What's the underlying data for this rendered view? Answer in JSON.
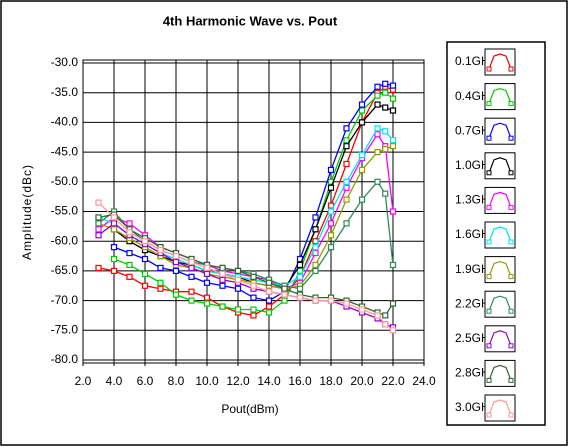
{
  "chart_data": {
    "type": "line",
    "title": "4th Harmonic Wave vs. Pout",
    "x_label": "Pout(dBm)",
    "y_label": "Amplitude(dBc)",
    "x": [
      3,
      4,
      5,
      6,
      7,
      8,
      9,
      10,
      11,
      12,
      13,
      14,
      15,
      16,
      17,
      18,
      19,
      20,
      21,
      21.5,
      22
    ],
    "xlim": [
      2,
      24
    ],
    "ylim": [
      -80,
      -30
    ],
    "xticks": [
      {
        "value": 2,
        "label": "2.0"
      },
      {
        "value": 4,
        "label": "4.0"
      },
      {
        "value": 6,
        "label": "6.0"
      },
      {
        "value": 8,
        "label": "8.0"
      },
      {
        "value": 10,
        "label": "10.0"
      },
      {
        "value": 12,
        "label": "12.0"
      },
      {
        "value": 14,
        "label": "14.0"
      },
      {
        "value": 16,
        "label": "16.0"
      },
      {
        "value": 18,
        "label": "18.0"
      },
      {
        "value": 20,
        "label": "20.0"
      },
      {
        "value": 22,
        "label": "22.0"
      },
      {
        "value": 24,
        "label": "24.0"
      }
    ],
    "yticks": [
      {
        "value": -30,
        "label": "-30.0"
      },
      {
        "value": -35,
        "label": "-35.0"
      },
      {
        "value": -40,
        "label": "-40.0"
      },
      {
        "value": -45,
        "label": "-45.0"
      },
      {
        "value": -50,
        "label": "-50.0"
      },
      {
        "value": -55,
        "label": "-55.0"
      },
      {
        "value": -60,
        "label": "-60.0"
      },
      {
        "value": -65,
        "label": "-65.0"
      },
      {
        "value": -70,
        "label": "-70.0"
      },
      {
        "value": -75,
        "label": "-75.0"
      },
      {
        "value": -80,
        "label": "-80.0"
      }
    ],
    "grid": true,
    "legend": "right",
    "series": [
      {
        "name": "0.1GHz",
        "color": "#ff0000",
        "values": [
          -64.5,
          -65,
          -66,
          -67.5,
          -68,
          -68.5,
          -68.5,
          -69.5,
          -71,
          -72,
          -72.5,
          -71,
          -69,
          -66,
          -60,
          -54,
          -47,
          -40,
          -35,
          -34,
          -34.5
        ]
      },
      {
        "name": "0.4GHz",
        "color": "#00cc00",
        "values": [
          null,
          -63,
          -64,
          -65.5,
          -67,
          -69,
          -70,
          -70.5,
          -71,
          -71.5,
          -71.5,
          -72,
          -70,
          -65,
          -58,
          -50,
          -43,
          -38,
          -35.5,
          -35,
          -36
        ]
      },
      {
        "name": "0.7GHz",
        "color": "#0000ff",
        "values": [
          null,
          -61,
          -62,
          -63,
          -64.5,
          -65,
          -66,
          -67,
          -67.5,
          -68,
          -69.5,
          -70,
          -68.5,
          -63,
          -56,
          -48,
          -41,
          -37,
          -34,
          -33.5,
          -33.8
        ]
      },
      {
        "name": "1.0GHz",
        "color": "#000000",
        "values": [
          null,
          -58,
          -60,
          -61.5,
          -62.5,
          -63.5,
          -64,
          -65,
          -65.5,
          -66,
          -67,
          -67.5,
          -68,
          -64,
          -58,
          -51,
          -44,
          -40,
          -37,
          -37.5,
          -38
        ]
      },
      {
        "name": "1.3GHz",
        "color": "#ff00ff",
        "values": [
          -58,
          -56,
          -57,
          -59,
          -61,
          -62,
          -63,
          -64,
          -65,
          -65.5,
          -66,
          -66.5,
          -68,
          -67,
          -62,
          -57,
          -51,
          -46,
          -42,
          -44,
          -55
        ]
      },
      {
        "name": "1.6GHz",
        "color": "#00e5ee",
        "values": [
          -56,
          -57,
          -59,
          -60.5,
          -62,
          -63,
          -64,
          -65,
          -65.5,
          -66,
          -66.5,
          -67,
          -67.5,
          -66,
          -61,
          -55,
          -50,
          -45.5,
          -41,
          -41.5,
          -43
        ]
      },
      {
        "name": "1.9GHz",
        "color": "#999900",
        "values": [
          -57,
          -58,
          -59.5,
          -61,
          -62.5,
          -64,
          -64.5,
          -65.5,
          -66,
          -66.5,
          -67,
          -67.5,
          -68,
          -67.5,
          -64,
          -59,
          -53,
          -48,
          -45,
          -44.5,
          -44
        ]
      },
      {
        "name": "2.2GHz",
        "color": "#2e8b57",
        "values": [
          -57,
          -55,
          -58,
          -60,
          -61.5,
          -62.5,
          -63.5,
          -64,
          -64.5,
          -65,
          -65.5,
          -66.5,
          -67.5,
          -68,
          -65,
          -61,
          -57,
          -53,
          -50,
          -52,
          -64
        ]
      },
      {
        "name": "2.5GHz",
        "color": "#9900cc",
        "values": [
          -59,
          -57,
          -59,
          -60.5,
          -62,
          -63.5,
          -64.5,
          -65.5,
          -66.5,
          -67,
          -68,
          -68.5,
          -69,
          -69.5,
          -70,
          -70,
          -71,
          -72,
          -73,
          -74,
          -74.5
        ]
      },
      {
        "name": "2.8GHz",
        "color": "#336633",
        "values": [
          -56,
          -55.5,
          -58,
          -59.5,
          -61,
          -62,
          -63,
          -64,
          -64.5,
          -65,
          -66,
          -67,
          -68,
          -69,
          -69.5,
          -69.5,
          -70,
          -71,
          -72,
          -72.5,
          -70.5
        ]
      },
      {
        "name": "3.0GHz",
        "color": "#ff9999",
        "values": [
          -53.5,
          -56,
          -58.5,
          -60,
          -61.5,
          -62.5,
          -63.5,
          -64.5,
          -65.5,
          -66.5,
          -67.5,
          -68.5,
          -69,
          -69.5,
          -70,
          -70,
          -70.5,
          -71.5,
          -72.5,
          -74,
          -75
        ]
      }
    ]
  }
}
